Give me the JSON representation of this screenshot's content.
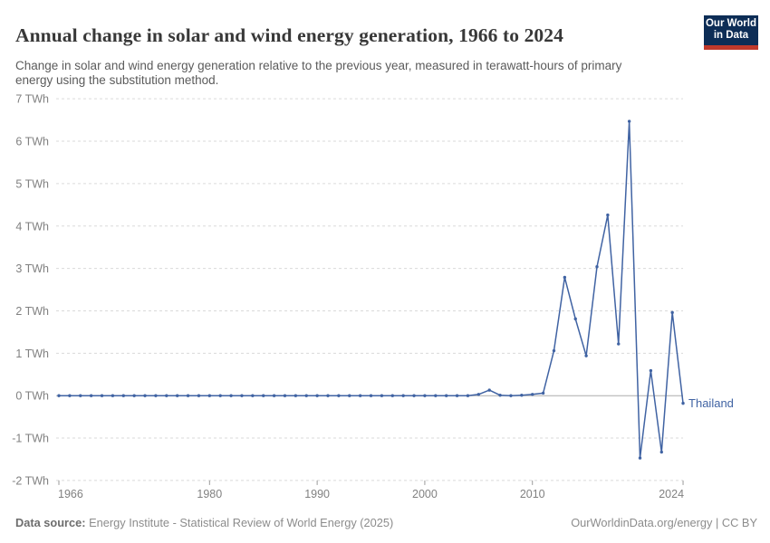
{
  "header": {
    "title": "Annual change in solar and wind energy generation, 1966 to 2024",
    "subtitle": "Change in solar and wind energy generation relative to the previous year, measured in terawatt-hours of primary energy using the substitution method.",
    "logo": {
      "line1": "Our World",
      "line2": "in Data"
    }
  },
  "chart_data": {
    "type": "line",
    "title": "Annual change in solar and wind energy generation, 1966 to 2024",
    "x": [
      1966,
      1967,
      1968,
      1969,
      1970,
      1971,
      1972,
      1973,
      1974,
      1975,
      1976,
      1977,
      1978,
      1979,
      1980,
      1981,
      1982,
      1983,
      1984,
      1985,
      1986,
      1987,
      1988,
      1989,
      1990,
      1991,
      1992,
      1993,
      1994,
      1995,
      1996,
      1997,
      1998,
      1999,
      2000,
      2001,
      2002,
      2003,
      2004,
      2005,
      2006,
      2007,
      2008,
      2009,
      2010,
      2011,
      2012,
      2013,
      2014,
      2015,
      2016,
      2017,
      2018,
      2019,
      2020,
      2021,
      2022,
      2023,
      2024
    ],
    "series": [
      {
        "name": "Thailand",
        "color": "#4063a3",
        "values": [
          0,
          0,
          0,
          0,
          0,
          0,
          0,
          0,
          0,
          0,
          0,
          0,
          0,
          0,
          0,
          0,
          0,
          0,
          0,
          0,
          0,
          0,
          0,
          0,
          0,
          0,
          0,
          0,
          0,
          0,
          0,
          0,
          0,
          0,
          0,
          0,
          0,
          0,
          0,
          0.03,
          0.13,
          0.01,
          0,
          0.01,
          0.03,
          0.06,
          1.06,
          2.79,
          1.81,
          0.94,
          3.04,
          4.26,
          1.22,
          6.47,
          -1.47,
          0.59,
          -1.33,
          1.96,
          -0.18
        ]
      }
    ],
    "xlim": [
      1966,
      2024
    ],
    "ylim": [
      -2,
      7
    ],
    "xticks": [
      1966,
      1980,
      1990,
      2000,
      2010,
      2024
    ],
    "xtick_labels": [
      "1966",
      "1980",
      "1990",
      "2000",
      "2010",
      "2024"
    ],
    "yticks": [
      7,
      6,
      5,
      4,
      3,
      2,
      1,
      0,
      -1,
      -2
    ],
    "ytick_labels": [
      "7 TWh",
      "6 TWh",
      "5 TWh",
      "4 TWh",
      "3 TWh",
      "2 TWh",
      "1 TWh",
      "0 TWh",
      "-1 TWh",
      "-2 TWh"
    ],
    "unit": "TWh",
    "grid": "horizontal-dashed",
    "zero_line": true,
    "legend_position": "end-of-line-label"
  },
  "footer": {
    "source_label": "Data source:",
    "source": "Energy Institute - Statistical Review of World Energy (2025)",
    "credit": "OurWorldinData.org/energy | CC BY"
  },
  "colors": {
    "line": "#4063a3",
    "grid": "#dadada",
    "zero_line": "#ababab",
    "axis_text": "#818181",
    "tick_mark": "#9a9a9a",
    "title": "#383838",
    "subtitle": "#5b5b5b",
    "logo_bg": "#0d2d56",
    "logo_accent": "#c0392b",
    "footer_text": "#8c8c8c"
  }
}
